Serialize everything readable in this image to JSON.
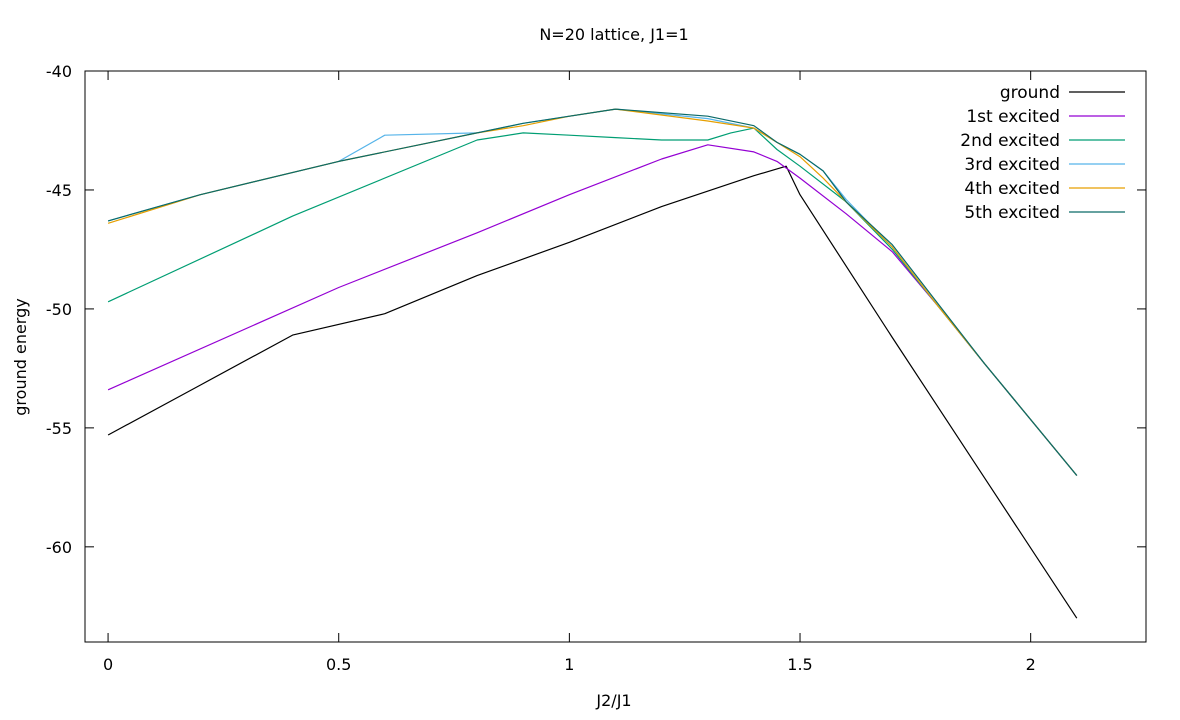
{
  "chart_data": {
    "type": "line",
    "title": "N=20 lattice, J1=1",
    "xlabel": "J2/J1",
    "ylabel": "ground energy",
    "xlim": [
      -0.05,
      2.25
    ],
    "ylim": [
      -64,
      -40
    ],
    "xticks": [
      {
        "value": 0,
        "label": "0"
      },
      {
        "value": 0.5,
        "label": "0.5"
      },
      {
        "value": 1,
        "label": "1"
      },
      {
        "value": 1.5,
        "label": "1.5"
      },
      {
        "value": 2,
        "label": "2"
      }
    ],
    "yticks": [
      {
        "value": -40,
        "label": "-40"
      },
      {
        "value": -45,
        "label": "-45"
      },
      {
        "value": -50,
        "label": "-50"
      },
      {
        "value": -55,
        "label": "-55"
      },
      {
        "value": -60,
        "label": "-60"
      }
    ],
    "grid": false,
    "legend_position": "top-right",
    "series": [
      {
        "name": "ground",
        "color": "#000000",
        "x": [
          0,
          0.2,
          0.4,
          0.6,
          0.8,
          1.0,
          1.2,
          1.4,
          1.47,
          1.5,
          1.7,
          1.9,
          2.1
        ],
        "y": [
          -55.3,
          -53.2,
          -51.1,
          -50.2,
          -48.6,
          -47.2,
          -45.7,
          -44.4,
          -44.0,
          -45.2,
          -51.2,
          -57.1,
          -63.0
        ]
      },
      {
        "name": "1st excited",
        "color": "#9400d3",
        "x": [
          0,
          0.5,
          0.8,
          1.0,
          1.2,
          1.3,
          1.4,
          1.45,
          1.5,
          1.6,
          1.7,
          1.8,
          1.9,
          2.1
        ],
        "y": [
          -53.4,
          -49.1,
          -46.8,
          -45.2,
          -43.7,
          -43.1,
          -43.4,
          -43.8,
          -44.5,
          -46.0,
          -47.6,
          -49.9,
          -52.3,
          -57.0
        ]
      },
      {
        "name": "2nd excited",
        "color": "#009e73",
        "x": [
          0,
          0.4,
          0.8,
          0.9,
          1.0,
          1.1,
          1.2,
          1.3,
          1.35,
          1.4,
          1.45,
          1.5,
          1.6,
          1.7,
          1.8,
          1.9,
          2.1
        ],
        "y": [
          -49.7,
          -46.1,
          -42.9,
          -42.6,
          -42.7,
          -42.8,
          -42.9,
          -42.9,
          -42.6,
          -42.4,
          -43.3,
          -44.0,
          -45.5,
          -47.5,
          -49.9,
          -52.3,
          -57.0
        ]
      },
      {
        "name": "3rd excited",
        "color": "#56b4e9",
        "x": [
          0,
          0.2,
          0.5,
          0.6,
          0.8,
          0.9,
          1.1,
          1.3,
          1.4,
          1.45,
          1.5,
          1.55,
          1.6,
          1.7,
          1.8,
          1.9,
          2.1
        ],
        "y": [
          -46.3,
          -45.2,
          -43.8,
          -42.7,
          -42.6,
          -42.2,
          -41.6,
          -42.0,
          -42.4,
          -43.0,
          -43.5,
          -44.2,
          -45.4,
          -47.4,
          -49.9,
          -52.3,
          -57.0
        ]
      },
      {
        "name": "4th excited",
        "color": "#e69f00",
        "x": [
          0,
          0.2,
          0.5,
          0.8,
          0.9,
          1.0,
          1.1,
          1.3,
          1.4,
          1.45,
          1.5,
          1.55,
          1.6,
          1.7,
          1.8,
          1.9,
          2.1
        ],
        "y": [
          -46.4,
          -45.2,
          -43.8,
          -42.6,
          -42.3,
          -41.9,
          -41.6,
          -42.1,
          -42.4,
          -43.0,
          -43.6,
          -44.5,
          -45.5,
          -47.4,
          -49.9,
          -52.3,
          -57.0
        ]
      },
      {
        "name": "5th excited",
        "color": "#0a6a68",
        "x": [
          0,
          0.2,
          0.5,
          0.8,
          0.9,
          1.0,
          1.1,
          1.3,
          1.4,
          1.45,
          1.5,
          1.55,
          1.6,
          1.7,
          1.8,
          1.9,
          2.1
        ],
        "y": [
          -46.3,
          -45.2,
          -43.8,
          -42.6,
          -42.2,
          -41.9,
          -41.6,
          -41.9,
          -42.3,
          -43.0,
          -43.5,
          -44.2,
          -45.5,
          -47.3,
          -49.8,
          -52.3,
          -57.0
        ]
      }
    ]
  }
}
